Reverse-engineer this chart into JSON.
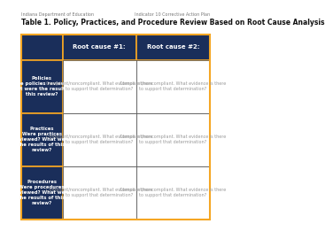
{
  "header_left": "Indiana Department of Education",
  "header_right": "Indicator 10 Corrective Action Plan",
  "title": "Table 1. Policy, Practices, and Procedure Review Based on Root Cause Analysis",
  "dark_blue": "#1a2e5a",
  "gold": "#f5a623",
  "white": "#ffffff",
  "header_row": [
    "",
    "Root cause #1:",
    "Root cause #2:"
  ],
  "row_headers": [
    "Policies\nWere policies reviewed?\nWhat were the results of\nthis review?",
    "Practices\nWere practices\nreviewed? What were\nthe results of this\nreview?",
    "Procedures\nWere procedures\nreviewed? What were\nthe results of this\nreview?"
  ],
  "cell_content": "Compliant/noncompliant. What evidence is there\nto support that determination?",
  "bg_color": "#ffffff"
}
